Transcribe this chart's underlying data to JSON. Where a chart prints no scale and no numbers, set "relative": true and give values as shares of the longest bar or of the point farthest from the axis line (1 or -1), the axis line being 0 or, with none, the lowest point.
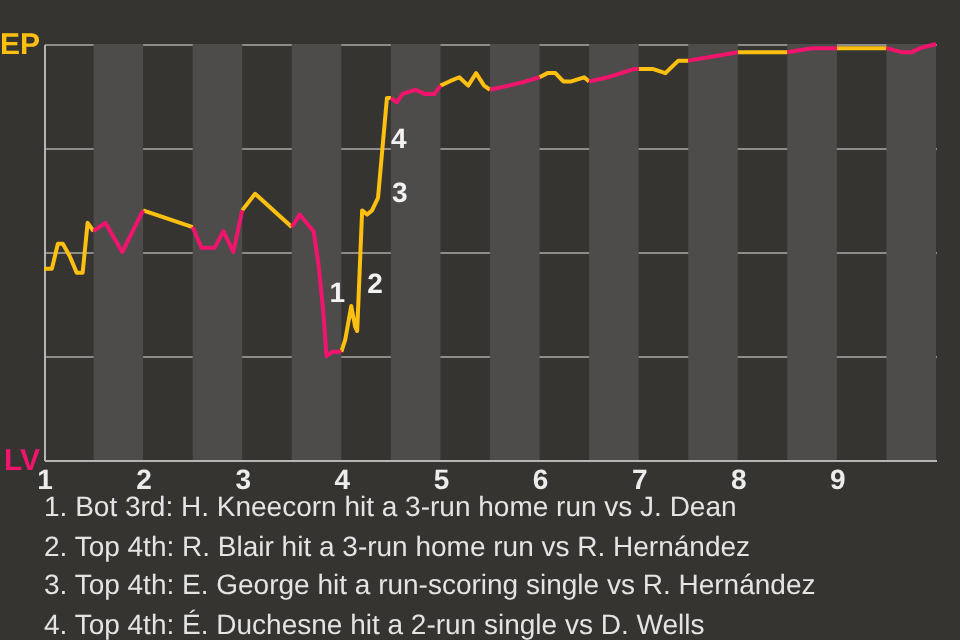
{
  "chart_data": {
    "type": "line",
    "relative": true,
    "series": [
      {
        "color": "#fdc010",
        "x": [
          1,
          1.08,
          1.14,
          1.19,
          1.26,
          1.33,
          1.39,
          1.44,
          1.5,
          1.76,
          2,
          2.5,
          2.76,
          3,
          3.13,
          3.5,
          3.75,
          4,
          4.04,
          4.1,
          4.14,
          4.16,
          4.21,
          4.26,
          4.31,
          4.37,
          4.46,
          4.5,
          4.75,
          5,
          5.09,
          5.19,
          5.28,
          5.36,
          5.44,
          5.5,
          5.72,
          6,
          6.08,
          6.16,
          6.24,
          6.32,
          6.45,
          6.5,
          6.69,
          7,
          7.14,
          7.27,
          7.4,
          7.5,
          7.71,
          8,
          8.5,
          8.72,
          9,
          9.5
        ],
        "values": [
          0.46,
          0.46,
          0.52,
          0.52,
          0.49,
          0.45,
          0.45,
          0.57,
          0.55,
          null,
          0.6,
          0.56,
          null,
          0.6,
          0.64,
          0.56,
          null,
          0.26,
          0.29,
          0.37,
          0.32,
          0.31,
          0.6,
          0.59,
          0.6,
          0.63,
          0.87,
          0.87,
          null,
          0.9,
          0.91,
          0.92,
          0.9,
          0.93,
          0.9,
          0.89,
          null,
          0.92,
          0.93,
          0.93,
          0.91,
          0.91,
          0.92,
          0.91,
          null,
          0.94,
          0.94,
          0.93,
          0.96,
          0.96,
          null,
          0.98,
          0.98,
          null,
          0.99,
          0.99
        ]
      },
      {
        "color": "#f0146c",
        "x": [
          1.5,
          1.62,
          1.79,
          2,
          2.19,
          2.5,
          2.59,
          2.72,
          2.81,
          2.91,
          3,
          3.26,
          3.5,
          3.58,
          3.72,
          3.77,
          3.82,
          3.85,
          3.91,
          4,
          4.27,
          4.5,
          4.56,
          4.62,
          4.75,
          4.84,
          4.94,
          5,
          5.24,
          5.5,
          5.69,
          5.86,
          6,
          6.26,
          6.5,
          6.69,
          6.96,
          7,
          7.21,
          7.5,
          7.75,
          8,
          8.27,
          8.5,
          8.75,
          9,
          9.31,
          9.5,
          9.66,
          9.75,
          9.84,
          10
        ],
        "values": [
          0.55,
          0.57,
          0.5,
          0.6,
          null,
          0.56,
          0.51,
          0.51,
          0.55,
          0.5,
          0.6,
          null,
          0.56,
          0.59,
          0.55,
          0.47,
          0.35,
          0.25,
          0.26,
          0.26,
          null,
          0.87,
          0.86,
          0.88,
          0.89,
          0.88,
          0.88,
          0.9,
          null,
          0.89,
          0.9,
          0.91,
          0.92,
          null,
          0.91,
          0.92,
          0.94,
          0.94,
          null,
          0.96,
          0.97,
          0.98,
          null,
          0.98,
          0.99,
          0.99,
          null,
          0.99,
          0.98,
          0.98,
          0.99,
          1.0
        ]
      }
    ],
    "xlim": [
      1,
      10
    ],
    "xticks": [
      1,
      2,
      3,
      4,
      5,
      6,
      7,
      8,
      9
    ],
    "grid": "y",
    "bands": [
      {
        "axis": "x",
        "from": 1.5,
        "to": 2,
        "color": "#4e4c4a"
      },
      {
        "axis": "x",
        "from": 2.5,
        "to": 3,
        "color": "#4e4c4a"
      },
      {
        "axis": "x",
        "from": 3.5,
        "to": 4,
        "color": "#4e4c4a"
      },
      {
        "axis": "x",
        "from": 4.5,
        "to": 5,
        "color": "#4e4c4a"
      },
      {
        "axis": "x",
        "from": 5.5,
        "to": 6,
        "color": "#4e4c4a"
      },
      {
        "axis": "x",
        "from": 6.5,
        "to": 7,
        "color": "#4e4c4a"
      },
      {
        "axis": "x",
        "from": 7.5,
        "to": 8,
        "color": "#4e4c4a"
      },
      {
        "axis": "x",
        "from": 8.5,
        "to": 9,
        "color": "#4e4c4a"
      },
      {
        "axis": "x",
        "from": 9.5,
        "to": 10,
        "color": "#4e4c4a"
      }
    ],
    "annotations": [
      "EP",
      "LV",
      {
        "text": "1",
        "x": 3.8,
        "y": 0.4
      },
      {
        "text": "2",
        "x": 4.18,
        "y": 0.42
      },
      {
        "text": "3",
        "x": 4.43,
        "y": 0.64
      },
      {
        "text": "4",
        "x": 4.42,
        "y": 0.77
      },
      "1. Bot 3rd: H. Kneecorn hit a 3-run home run vs J. Dean",
      "2. Top 4th: R. Blair hit a 3-run home run vs R. Hernández",
      "3. Top 4th: E. George hit a run-scoring single vs R. Hernández",
      "4. Top 4th: É. Duchesne hit a 2-run single vs D. Wells"
    ]
  }
}
